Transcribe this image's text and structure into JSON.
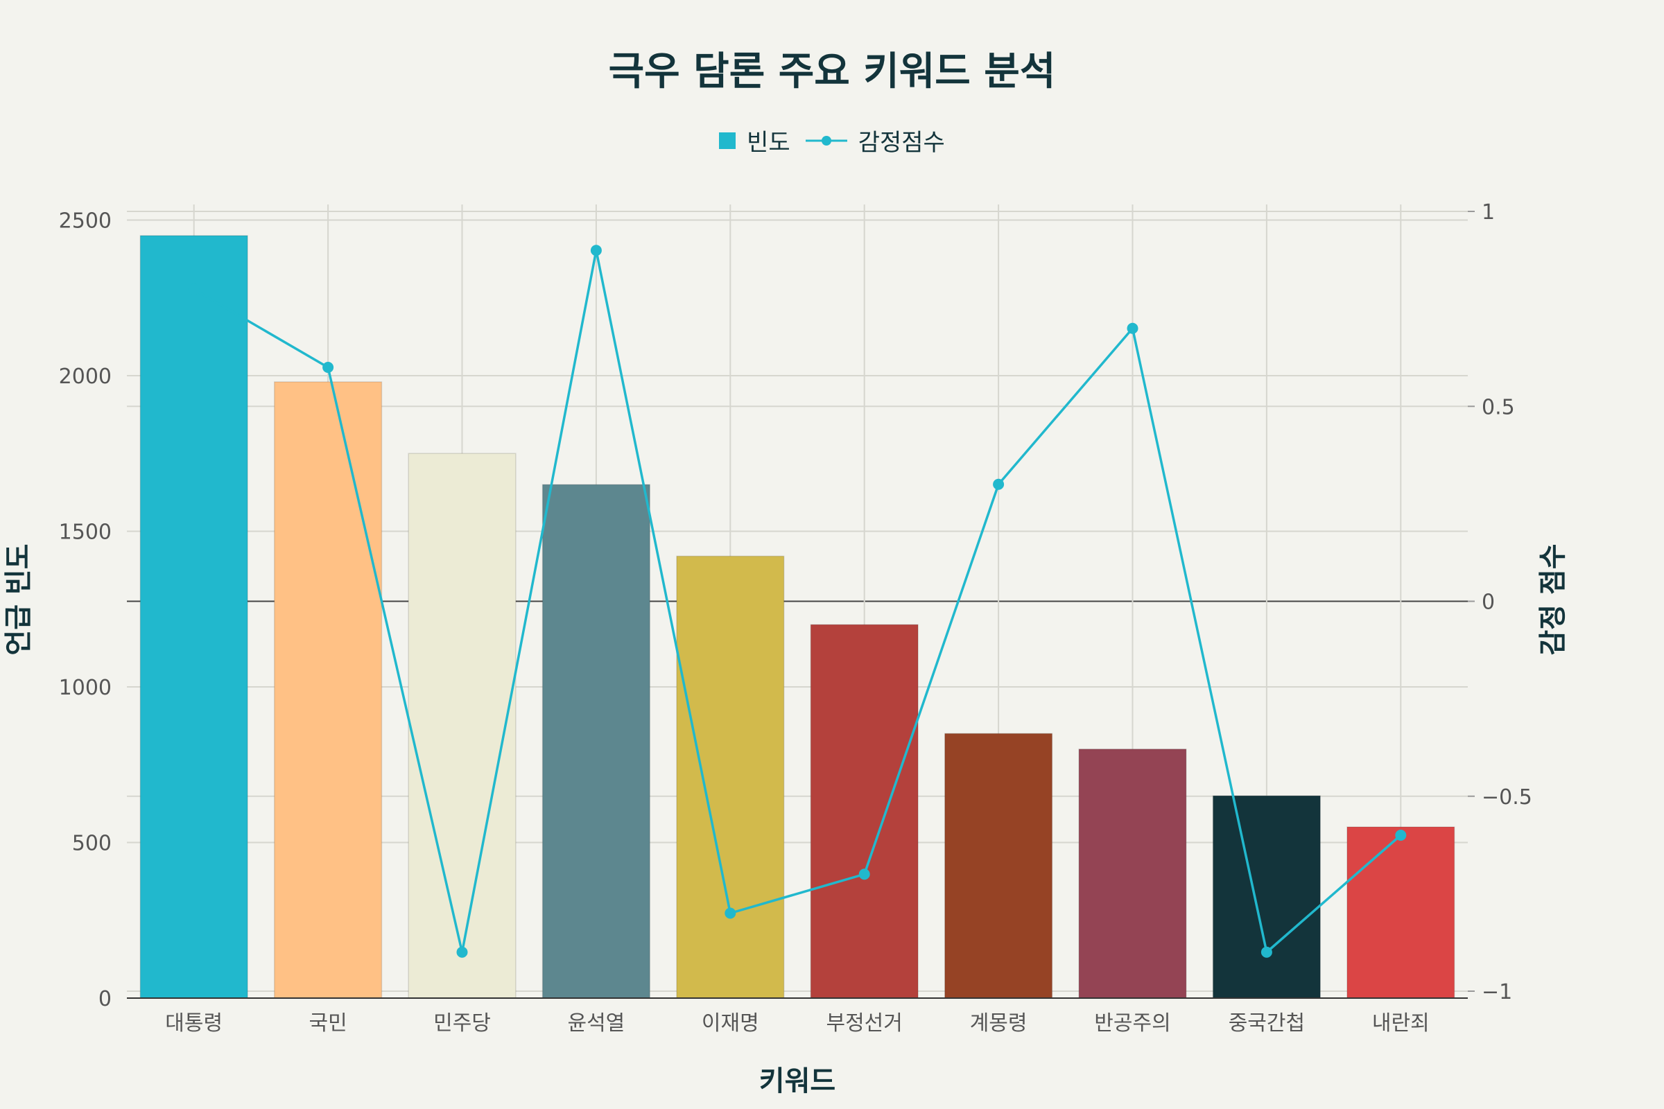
{
  "chart_data": {
    "type": "bar",
    "title": "극우 담론 주요 키워드 분석",
    "xlabel": "키워드",
    "ylabel": "언급 빈도",
    "y2label": "감정 점수",
    "categories": [
      "대통령",
      "국민",
      "민주당",
      "윤석열",
      "이재명",
      "부정선거",
      "계몽령",
      "반공주의",
      "중국간첩",
      "내란죄"
    ],
    "series": [
      {
        "name": "빈도",
        "type": "bar",
        "axis": "left",
        "values": [
          2450,
          1980,
          1750,
          1650,
          1420,
          1200,
          850,
          800,
          650,
          550
        ],
        "colors": [
          "#21b8cd",
          "#ffc185",
          "#ecebd5",
          "#5d878f",
          "#d2ba4c",
          "#b4413c",
          "#964325",
          "#944454",
          "#13343b",
          "#db4545"
        ]
      },
      {
        "name": "감정점수",
        "type": "line",
        "axis": "right",
        "color": "#21b8cd",
        "values": [
          0.8,
          0.6,
          -0.9,
          0.9,
          -0.8,
          -0.7,
          0.3,
          0.7,
          -0.9,
          -0.6
        ]
      }
    ],
    "ylim": [
      0,
      2550
    ],
    "yticks": [
      0,
      500,
      1000,
      1500,
      2000,
      2500
    ],
    "y2lim": [
      -1,
      1
    ],
    "y2ticks": [
      -1,
      -0.5,
      0,
      0.5,
      1
    ],
    "y2ticklabels": [
      "−1",
      "−0.5",
      "0",
      "0.5",
      "1"
    ],
    "grid": true,
    "legend_position": "top-center"
  }
}
